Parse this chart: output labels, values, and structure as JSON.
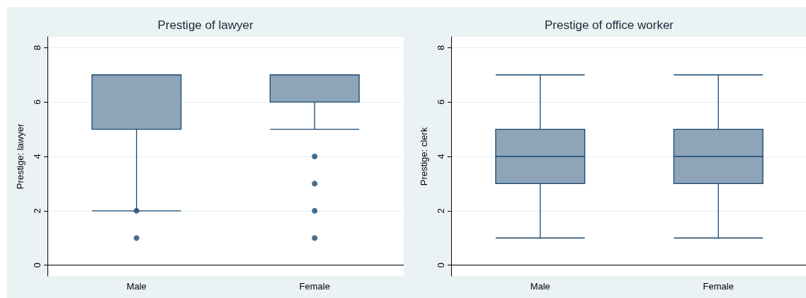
{
  "chart_data": [
    {
      "type": "box",
      "title": "Prestige of lawyer",
      "ylabel": "Prestige: lawyer",
      "categories": [
        "Male",
        "Female"
      ],
      "boxes": [
        {
          "low": 2,
          "q1": 5,
          "median": 7,
          "q3": 7,
          "high": 7,
          "outliers": [
            2,
            1
          ]
        },
        {
          "low": 5,
          "q1": 6,
          "median": 7,
          "q3": 7,
          "high": 7,
          "outliers": [
            4,
            3,
            2,
            1
          ]
        }
      ],
      "color": "#8ea4b8",
      "ylim": [
        -0.4,
        8.4
      ],
      "yticks": [
        0,
        2,
        4,
        6,
        8
      ],
      "grid": "y"
    },
    {
      "type": "box",
      "title": "Prestige of office worker",
      "ylabel": "Prestige: clerk",
      "categories": [
        "Male",
        "Female"
      ],
      "boxes": [
        {
          "low": 1,
          "q1": 3,
          "median": 4,
          "q3": 5,
          "high": 7
        },
        {
          "low": 1,
          "q1": 3,
          "median": 4,
          "q3": 5,
          "high": 7
        }
      ],
      "color": "#8ea4b8",
      "ylim": [
        -0.4,
        8.4
      ],
      "yticks": [
        0,
        2,
        4,
        6,
        8
      ],
      "grid": "y"
    }
  ]
}
